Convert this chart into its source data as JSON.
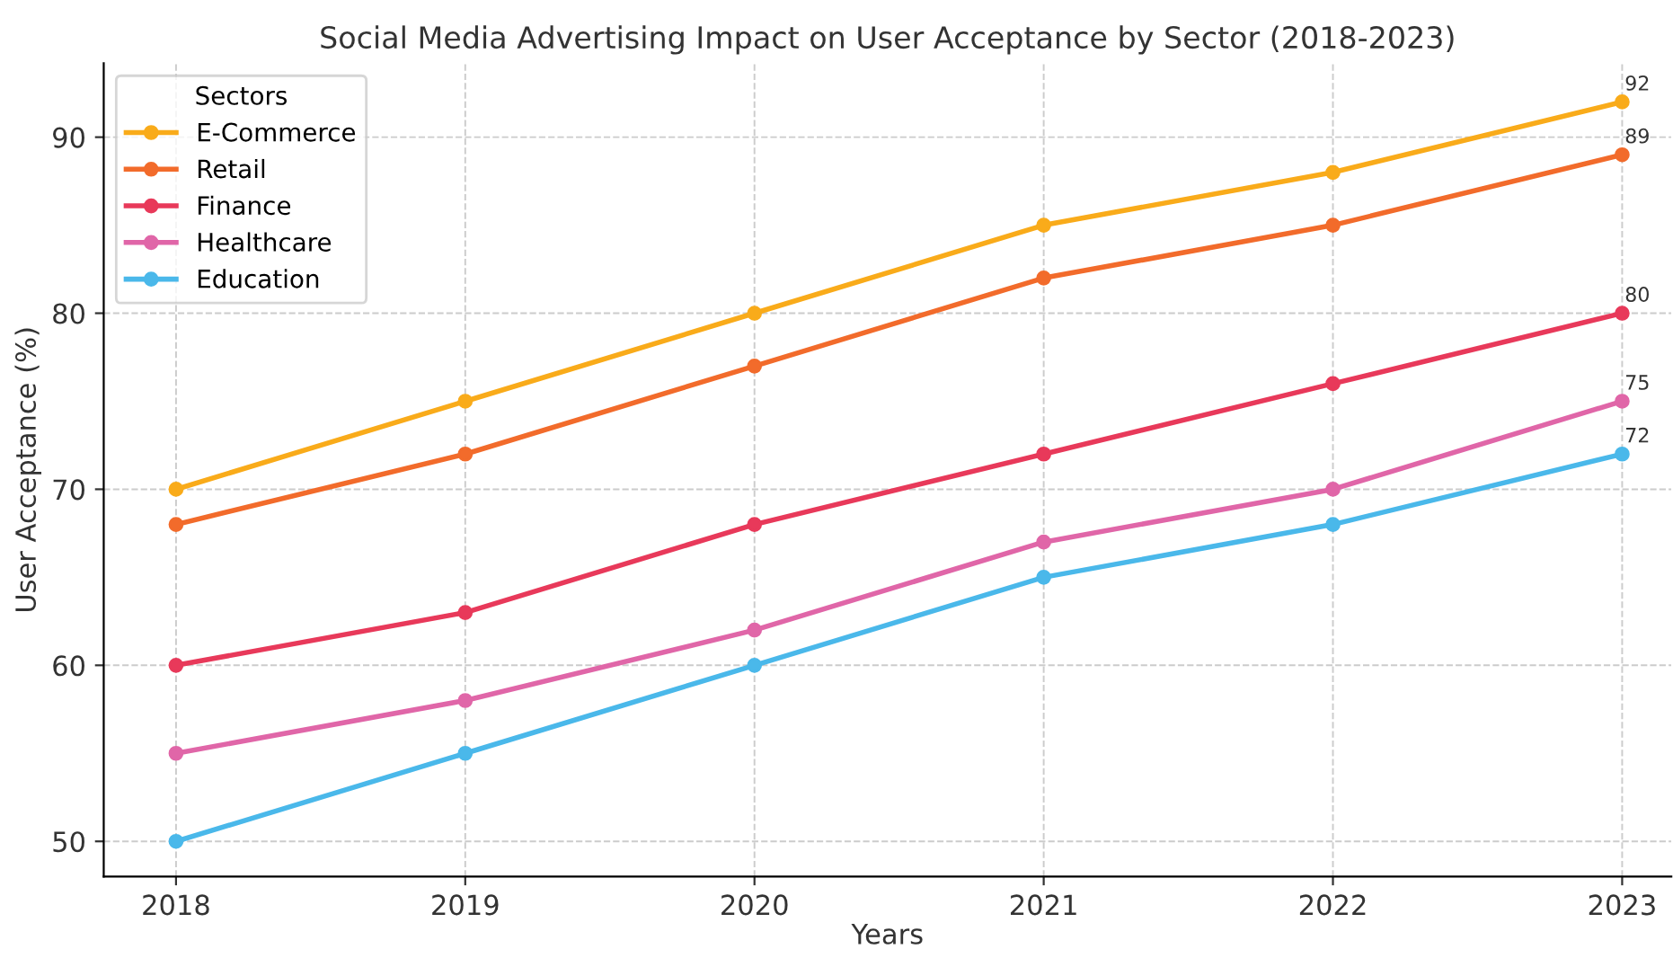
{
  "chart_data": {
    "type": "line",
    "title": "Social Media Advertising Impact on User Acceptance by Sector (2018-2023)",
    "xlabel": "Years",
    "ylabel": "User Acceptance (%)",
    "legend_title": "Sectors",
    "x": [
      2018,
      2019,
      2020,
      2021,
      2022,
      2023
    ],
    "series": [
      {
        "name": "E-Commerce",
        "color": "#f9ab1a",
        "values": [
          70,
          75,
          80,
          85,
          88,
          92
        ],
        "value_labels": [
          null,
          null,
          null,
          null,
          null,
          "92"
        ]
      },
      {
        "name": "Retail",
        "color": "#f26b2b",
        "values": [
          68,
          72,
          77,
          82,
          85,
          89
        ],
        "value_labels": [
          null,
          null,
          null,
          null,
          null,
          "89"
        ]
      },
      {
        "name": "Finance",
        "color": "#e8395a",
        "values": [
          60,
          63,
          68,
          72,
          76,
          80
        ],
        "value_labels": [
          null,
          null,
          null,
          null,
          null,
          "80"
        ]
      },
      {
        "name": "Healthcare",
        "color": "#e066a8",
        "values": [
          55,
          58,
          62,
          67,
          70,
          75
        ],
        "value_labels": [
          null,
          null,
          null,
          null,
          null,
          "75"
        ]
      },
      {
        "name": "Education",
        "color": "#4ab8ea",
        "values": [
          50,
          55,
          60,
          65,
          68,
          72
        ],
        "value_labels": [
          null,
          null,
          null,
          null,
          null,
          "72"
        ]
      }
    ],
    "xlim": [
      2017.75,
      2023.17
    ],
    "ylim": [
      48,
      94.2
    ],
    "xticks": [
      2018,
      2019,
      2020,
      2021,
      2022,
      2023
    ],
    "yticks": [
      50,
      60,
      70,
      80,
      90
    ],
    "grid": true,
    "legend": "top left",
    "marker": "circle",
    "line_style": "solid"
  }
}
